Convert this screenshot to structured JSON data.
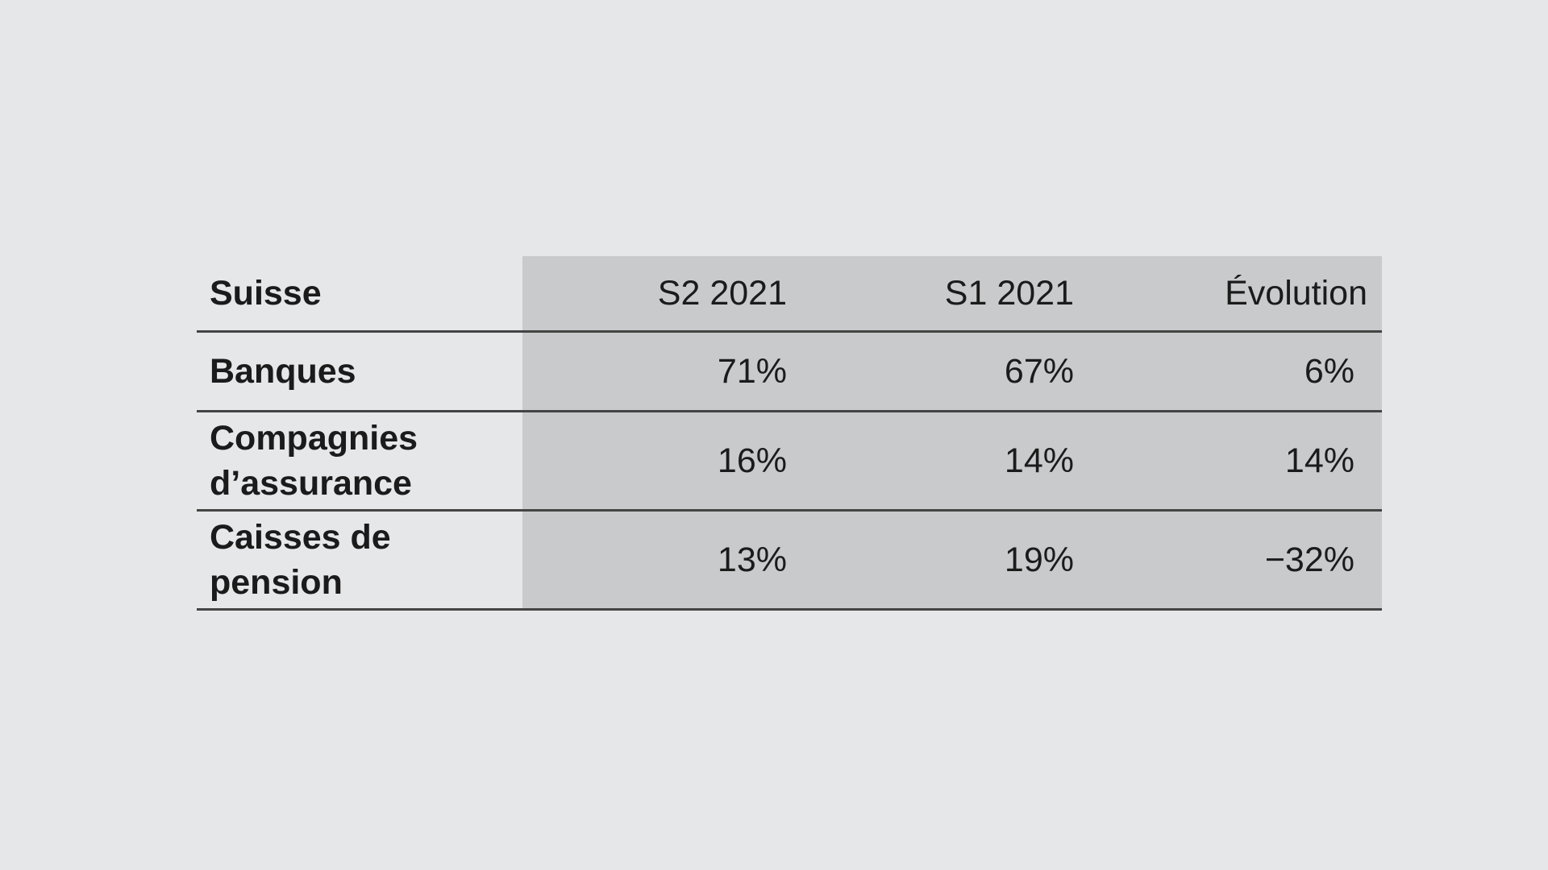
{
  "chart_data": {
    "type": "table",
    "columns": [
      "Suisse",
      "S2 2021",
      "S1 2021",
      "Évolution"
    ],
    "rows": [
      {
        "label": "Banques",
        "values": [
          "71%",
          "67%",
          "6%"
        ]
      },
      {
        "label": "Compagnies d’assurance",
        "values": [
          "16%",
          "14%",
          "14%"
        ]
      },
      {
        "label": "Caisses de pension",
        "values": [
          "13%",
          "19%",
          "−32%"
        ]
      }
    ]
  },
  "colors": {
    "background": "#e6e7e9",
    "value_cells": "#c9cacc",
    "rules": "#444444",
    "text": "#1b1b1b"
  }
}
